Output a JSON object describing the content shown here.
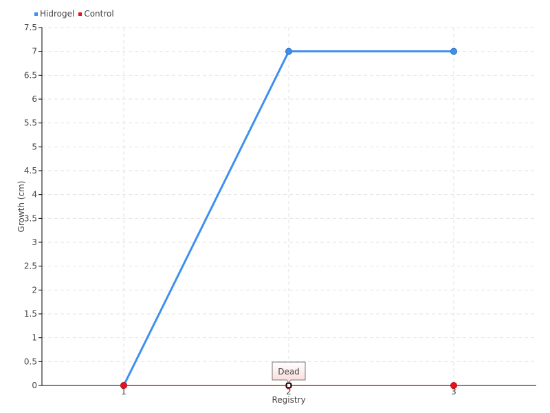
{
  "chart_data": {
    "type": "line",
    "categories": [
      "1",
      "2",
      "3"
    ],
    "series": [
      {
        "name": "Hidrogel",
        "values": [
          0,
          7,
          7
        ],
        "color": "#3d8ff0"
      },
      {
        "name": "Control",
        "values": [
          0,
          0,
          0
        ],
        "color": "#e8101e"
      }
    ],
    "xlabel": "Registry",
    "ylabel": "Growth (cm)",
    "ylim": [
      0,
      7.5
    ],
    "yticks": [
      "0",
      "0.5",
      "1",
      "1.5",
      "2",
      "2.5",
      "3",
      "3.5",
      "4",
      "4.5",
      "5",
      "5.5",
      "6",
      "6.5",
      "7",
      "7.5"
    ],
    "grid": true,
    "legend_position": "top-left",
    "annotations": [
      {
        "series": "Control",
        "category": "2",
        "text": "Dead"
      }
    ]
  }
}
